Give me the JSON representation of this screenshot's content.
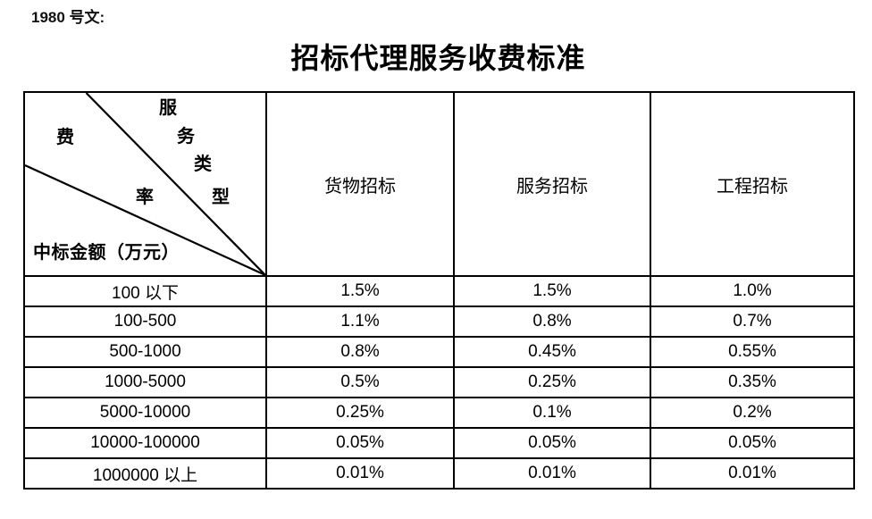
{
  "document": {
    "ref_label": "1980 号文:",
    "title": "招标代理服务收费标准"
  },
  "table": {
    "corner": {
      "fee_rate_chars": [
        "费",
        "率"
      ],
      "service_type_chars": [
        "服",
        "务",
        "类",
        "型"
      ],
      "amount_label": "中标金额（万元）"
    },
    "columns": [
      "货物招标",
      "服务招标",
      "工程招标"
    ],
    "rows": [
      {
        "amount_range": "100 以下",
        "values": [
          "1.5%",
          "1.5%",
          "1.0%"
        ]
      },
      {
        "amount_range": "100-500",
        "values": [
          "1.1%",
          "0.8%",
          "0.7%"
        ]
      },
      {
        "amount_range": "500-1000",
        "values": [
          "0.8%",
          "0.45%",
          "0.55%"
        ]
      },
      {
        "amount_range": "1000-5000",
        "values": [
          "0.5%",
          "0.25%",
          "0.35%"
        ]
      },
      {
        "amount_range": "5000-10000",
        "values": [
          "0.25%",
          "0.1%",
          "0.2%"
        ]
      },
      {
        "amount_range": "10000-100000",
        "values": [
          "0.05%",
          "0.05%",
          "0.05%"
        ]
      },
      {
        "amount_range": "1000000 以上",
        "values": [
          "0.01%",
          "0.01%",
          "0.01%"
        ]
      }
    ]
  },
  "colors": {
    "background": "#ffffff",
    "text": "#000000",
    "border": "#000000"
  }
}
